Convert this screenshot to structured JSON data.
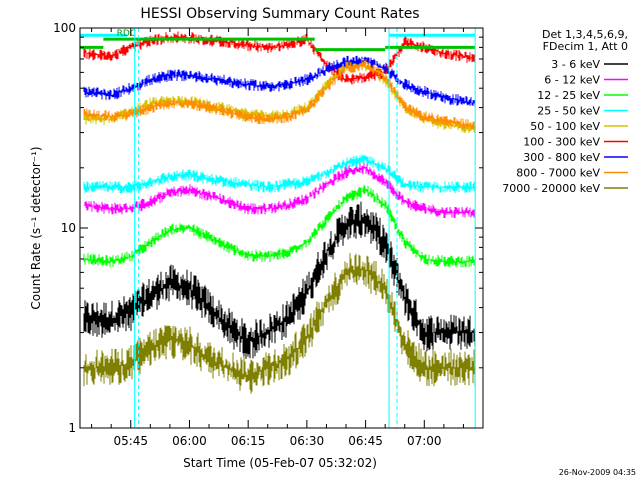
{
  "chart_data": {
    "type": "line",
    "title": "HESSI Observing Summary Count Rates",
    "xlabel": "Start Time (05-Feb-07 05:32:02)",
    "ylabel": "Count Rate (s⁻¹ detector⁻¹)",
    "ylim": [
      1,
      100
    ],
    "yscale": "log",
    "xlim": [
      "05:32:02",
      "07:15:00"
    ],
    "xticks": [
      "05:45",
      "06:00",
      "06:15",
      "06:30",
      "06:45",
      "07:00"
    ],
    "yticks": [
      "1",
      "10",
      "100"
    ],
    "grid": false,
    "legend": {
      "placement": "right",
      "header": [
        "Det 1,3,4,5,6,9,",
        "FDecim 1, Att 0"
      ],
      "entries": [
        {
          "label": "3 - 6 keV",
          "color": "#000000"
        },
        {
          "label": "6 - 12 keV",
          "color": "#ff00ff"
        },
        {
          "label": "12 - 25 keV",
          "color": "#00ff00"
        },
        {
          "label": "25 - 50 keV",
          "color": "#00ffff"
        },
        {
          "label": "50 - 100 keV",
          "color": "#d4c400"
        },
        {
          "label": "100 - 300 keV",
          "color": "#ff0000"
        },
        {
          "label": "300 - 800 keV",
          "color": "#0000ff"
        },
        {
          "label": "800 - 7000 keV",
          "color": "#ff8c00"
        },
        {
          "label": "7000 - 20000 keV",
          "color": "#808000"
        }
      ]
    },
    "annotations": {
      "rdc_label": "RDC",
      "flag_lines": [
        {
          "color": "#00c000",
          "segments": [
            [
              "05:32",
              "05:38",
              80
            ],
            [
              "05:38",
              "06:32",
              88
            ],
            [
              "06:32",
              "06:50",
              78
            ],
            [
              "06:50",
              "07:13",
              80
            ]
          ]
        },
        {
          "color": "#00ffff",
          "segments": [
            [
              "05:32",
              "05:44",
              92
            ],
            [
              "06:51",
              "07:13",
              92
            ]
          ]
        }
      ],
      "night_lines_cyan": [
        "05:32",
        "05:46",
        "06:51",
        "07:13"
      ],
      "dashed_lines_cyan": [
        "05:46",
        "06:52"
      ]
    },
    "series": [
      {
        "name": "3 - 6 keV",
        "color": "#000000",
        "x": [
          "05:33",
          "05:40",
          "05:45",
          "05:50",
          "05:55",
          "06:00",
          "06:05",
          "06:10",
          "06:15",
          "06:20",
          "06:25",
          "06:30",
          "06:35",
          "06:40",
          "06:45",
          "06:50",
          "06:55",
          "07:00",
          "07:05",
          "07:10",
          "07:13"
        ],
        "values": [
          3.5,
          3.5,
          3.8,
          4.6,
          5.3,
          5.0,
          4.0,
          3.2,
          2.7,
          3.0,
          3.5,
          4.8,
          7.5,
          10.5,
          11.0,
          8.5,
          4.5,
          3.0,
          3.0,
          3.0,
          3.0
        ]
      },
      {
        "name": "6 - 12 keV",
        "color": "#ff00ff",
        "x": [
          "05:33",
          "05:40",
          "05:45",
          "05:50",
          "05:55",
          "06:00",
          "06:05",
          "06:10",
          "06:15",
          "06:20",
          "06:25",
          "06:30",
          "06:35",
          "06:40",
          "06:45",
          "06:50",
          "06:55",
          "07:00",
          "07:05",
          "07:10",
          "07:13"
        ],
        "values": [
          13,
          12.5,
          12.5,
          13.5,
          15,
          15.5,
          14.5,
          13.5,
          12.5,
          12.5,
          13,
          14,
          16.5,
          19,
          20,
          17,
          13.5,
          12.5,
          12,
          12,
          12
        ]
      },
      {
        "name": "12 - 25 keV",
        "color": "#00ff00",
        "x": [
          "05:33",
          "05:40",
          "05:45",
          "05:50",
          "05:55",
          "06:00",
          "06:05",
          "06:10",
          "06:15",
          "06:20",
          "06:25",
          "06:30",
          "06:35",
          "06:40",
          "06:45",
          "06:50",
          "06:55",
          "07:00",
          "07:05",
          "07:10",
          "07:13"
        ],
        "values": [
          7,
          6.8,
          7.2,
          8.5,
          9.8,
          10,
          9,
          8,
          7.3,
          7.2,
          7.5,
          8.5,
          11,
          14,
          15.5,
          13,
          8.5,
          7,
          6.8,
          6.8,
          6.8
        ]
      },
      {
        "name": "25 - 50 keV",
        "color": "#00ffff",
        "x": [
          "05:33",
          "05:40",
          "05:45",
          "05:50",
          "05:55",
          "06:00",
          "06:05",
          "06:10",
          "06:15",
          "06:20",
          "06:25",
          "06:30",
          "06:35",
          "06:40",
          "06:45",
          "06:50",
          "06:55",
          "07:00",
          "07:05",
          "07:10",
          "07:13"
        ],
        "values": [
          16,
          16,
          16,
          17,
          18,
          18.5,
          17.5,
          17,
          16.5,
          16,
          16.5,
          17,
          19,
          21,
          22,
          20,
          16.5,
          16,
          16,
          16,
          16
        ]
      },
      {
        "name": "50 - 100 keV",
        "color": "#d4c400",
        "x": [
          "05:33",
          "05:40",
          "05:45",
          "05:50",
          "05:55",
          "06:00",
          "06:05",
          "06:10",
          "06:15",
          "06:20",
          "06:25",
          "06:30",
          "06:35",
          "06:40",
          "06:45",
          "06:50",
          "06:55",
          "07:00",
          "07:05",
          "07:10",
          "07:13"
        ],
        "values": [
          35,
          35,
          38,
          42,
          43,
          43,
          41,
          39,
          37,
          36,
          37,
          40,
          52,
          65,
          65,
          55,
          40,
          35,
          33,
          32,
          32
        ]
      },
      {
        "name": "100 - 300 keV",
        "color": "#ff0000",
        "x": [
          "05:33",
          "05:40",
          "05:45",
          "05:50",
          "05:55",
          "06:00",
          "06:05",
          "06:10",
          "06:15",
          "06:20",
          "06:25",
          "06:30",
          "06:35",
          "06:40",
          "06:45",
          "06:50",
          "06:55",
          "07:00",
          "07:05",
          "07:10",
          "07:13"
        ],
        "values": [
          75,
          72,
          80,
          86,
          90,
          89,
          87,
          85,
          82,
          80,
          82,
          88,
          65,
          55,
          57,
          60,
          85,
          80,
          75,
          72,
          70
        ]
      },
      {
        "name": "300 - 800 keV",
        "color": "#0000ff",
        "x": [
          "05:33",
          "05:40",
          "05:45",
          "05:50",
          "05:55",
          "06:00",
          "06:05",
          "06:10",
          "06:15",
          "06:20",
          "06:25",
          "06:30",
          "06:35",
          "06:40",
          "06:45",
          "06:50",
          "06:55",
          "07:00",
          "07:05",
          "07:10",
          "07:13"
        ],
        "values": [
          48,
          46,
          50,
          55,
          58,
          58,
          56,
          54,
          52,
          51,
          52,
          55,
          62,
          68,
          68,
          63,
          52,
          48,
          45,
          43,
          42
        ]
      },
      {
        "name": "800 - 7000 keV",
        "color": "#ff8c00",
        "x": [
          "05:33",
          "05:40",
          "05:45",
          "05:50",
          "05:55",
          "06:00",
          "06:05",
          "06:10",
          "06:15",
          "06:20",
          "06:25",
          "06:30",
          "06:35",
          "06:40",
          "06:45",
          "06:50",
          "06:55",
          "07:00",
          "07:05",
          "07:10",
          "07:13"
        ],
        "values": [
          37,
          36,
          37,
          40,
          42,
          42,
          40,
          38,
          36,
          35,
          36,
          39,
          50,
          63,
          66,
          57,
          40,
          36,
          34,
          33,
          32
        ]
      },
      {
        "name": "7000 - 20000 keV",
        "color": "#808000",
        "x": [
          "05:33",
          "05:40",
          "05:45",
          "05:50",
          "05:55",
          "06:00",
          "06:05",
          "06:10",
          "06:15",
          "06:20",
          "06:25",
          "06:30",
          "06:35",
          "06:40",
          "06:45",
          "06:50",
          "06:55",
          "07:00",
          "07:05",
          "07:10",
          "07:13"
        ],
        "values": [
          2,
          2,
          2.1,
          2.5,
          2.8,
          2.6,
          2.2,
          2,
          1.8,
          2,
          2.2,
          2.8,
          4.2,
          6,
          6.2,
          5,
          2.6,
          2,
          2,
          2,
          2
        ]
      }
    ]
  },
  "footer": {
    "timestamp": "26-Nov-2009 04:35"
  }
}
